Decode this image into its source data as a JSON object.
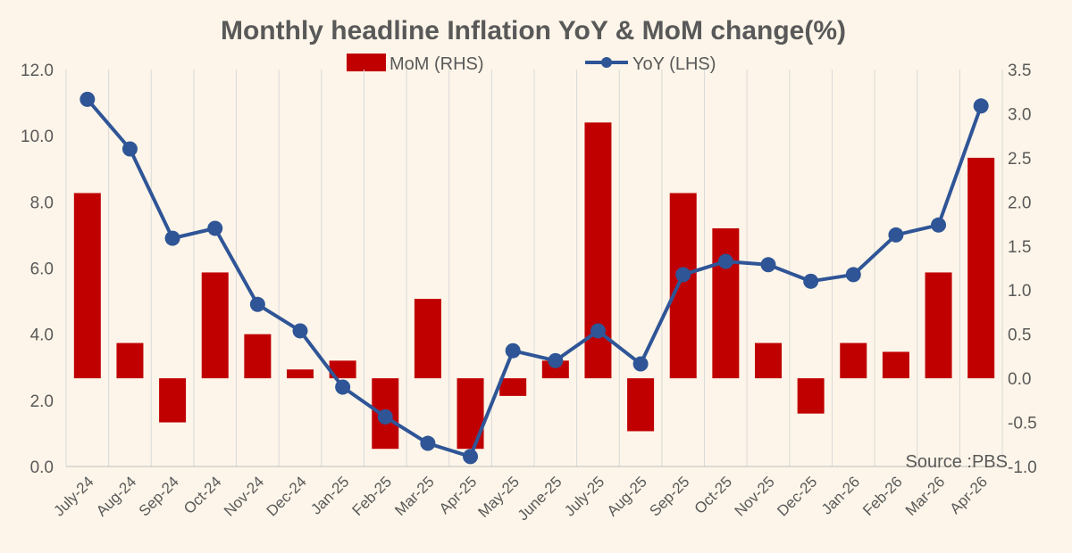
{
  "chart_data": {
    "type": "bar+line",
    "title": "Monthly headline Inflation YoY & MoM change(%)",
    "source_note": "Source :PBS",
    "categories": [
      "July-24",
      "Aug-24",
      "Sep-24",
      "Oct-24",
      "Nov-24",
      "Dec-24",
      "Jan-25",
      "Feb-25",
      "Mar-25",
      "Apr-25",
      "May-25",
      "June-25",
      "July-25",
      "Aug-25",
      "Sep-25",
      "Oct-25",
      "Nov-25",
      "Dec-25",
      "Jan-26",
      "Feb-26",
      "Mar-26",
      "Apr-26"
    ],
    "series": [
      {
        "name": "MoM (RHS)",
        "type": "bar",
        "axis": "right",
        "color": "#c00000",
        "values": [
          2.1,
          0.4,
          -0.5,
          1.2,
          0.5,
          0.1,
          0.2,
          -0.8,
          0.9,
          -0.8,
          -0.2,
          0.2,
          2.9,
          -0.6,
          2.1,
          1.7,
          0.4,
          -0.4,
          0.4,
          0.3,
          1.2,
          2.5
        ]
      },
      {
        "name": "YoY (LHS)",
        "type": "line",
        "axis": "left",
        "color": "#2f5597",
        "values": [
          11.1,
          9.6,
          6.9,
          7.2,
          4.9,
          4.1,
          2.4,
          1.5,
          0.7,
          0.3,
          3.5,
          3.2,
          4.1,
          3.1,
          5.8,
          6.2,
          6.1,
          5.6,
          5.8,
          7.0,
          7.3,
          10.9
        ]
      }
    ],
    "y_left": {
      "min": 0,
      "max": 12,
      "step": 2,
      "tick_labels": [
        "0.0",
        "2.0",
        "4.0",
        "6.0",
        "8.0",
        "10.0",
        "12.0"
      ]
    },
    "y_right": {
      "min": -1,
      "max": 3.5,
      "step": 0.5,
      "tick_labels": [
        "-1.0",
        "-0.5",
        "0.0",
        "0.5",
        "1.0",
        "1.5",
        "2.0",
        "2.5",
        "3.0",
        "3.5"
      ]
    },
    "grid": "vertical",
    "legend_position": "top-center"
  }
}
